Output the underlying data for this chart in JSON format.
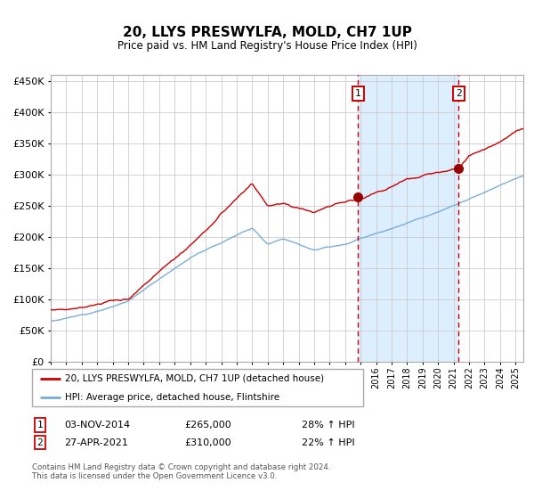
{
  "title": "20, LLYS PRESWYLFA, MOLD, CH7 1UP",
  "subtitle": "Price paid vs. HM Land Registry's House Price Index (HPI)",
  "legend_red": "20, LLYS PRESWYLFA, MOLD, CH7 1UP (detached house)",
  "legend_blue": "HPI: Average price, detached house, Flintshire",
  "sale1_date": "03-NOV-2014",
  "sale1_price": 265000,
  "sale1_pct": "28% ↑ HPI",
  "sale2_date": "27-APR-2021",
  "sale2_price": 310000,
  "sale2_pct": "22% ↑ HPI",
  "sale1_x": 2014.84,
  "sale2_x": 2021.32,
  "footnote": "Contains HM Land Registry data © Crown copyright and database right 2024.\nThis data is licensed under the Open Government Licence v3.0.",
  "ylim": [
    0,
    460000
  ],
  "xlim_start": 1995,
  "xlim_end": 2025.5,
  "red_color": "#cc0000",
  "blue_color": "#7aaed6",
  "shade_color": "#ddeeff",
  "grid_color": "#cccccc"
}
